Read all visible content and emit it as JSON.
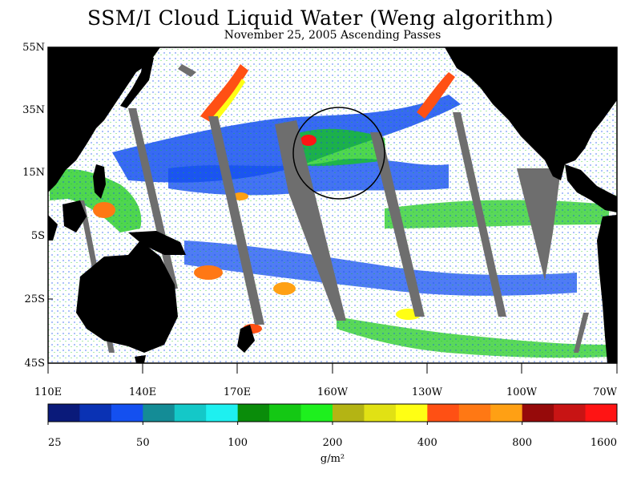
{
  "title": "SSM/I Cloud Liquid Water (Weng algorithm)",
  "subtitle": "November 25, 2005  Ascending Passes",
  "map": {
    "lat_labels": [
      "55N",
      "35N",
      "15N",
      "5S",
      "25S",
      "45S"
    ],
    "lon_labels": [
      "110E",
      "140E",
      "170E",
      "160W",
      "130W",
      "100W",
      "70W"
    ],
    "colors": {
      "land": "#000000",
      "clear_ocean": "#ffffff",
      "no_data_swath_gap": "#6e6e6e"
    },
    "annotation": "circle"
  },
  "legend": {
    "colors": [
      "#0a1a7a",
      "#0a32b4",
      "#1450f0",
      "#148c96",
      "#14c8c8",
      "#1ef0f0",
      "#0a8c0a",
      "#14c814",
      "#1ef01e",
      "#b4b414",
      "#e1e114",
      "#ffff14",
      "#ff5014",
      "#ff7814",
      "#ffa014",
      "#960a0a",
      "#c81414",
      "#ff1414"
    ],
    "tick_labels": [
      "25",
      "50",
      "100",
      "200",
      "400",
      "800",
      "1600"
    ],
    "unit": "g/m²"
  }
}
